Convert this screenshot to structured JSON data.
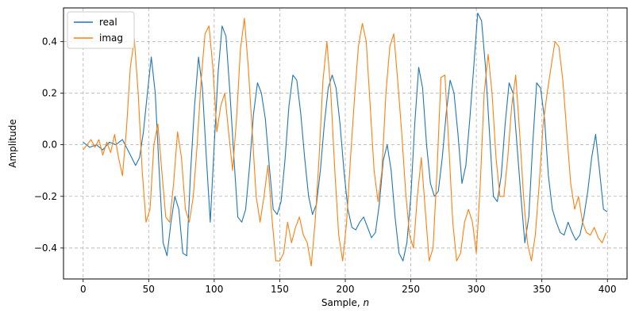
{
  "chart_data": {
    "type": "line",
    "title": "",
    "xlabel": "Sample, ",
    "xlabel_var": "n",
    "ylabel": "Amplitude",
    "xlim": [
      -15,
      415
    ],
    "ylim": [
      -0.52,
      0.53
    ],
    "xticks": [
      0,
      50,
      100,
      150,
      200,
      250,
      300,
      350,
      400
    ],
    "xtick_labels": [
      "0",
      "50",
      "100",
      "150",
      "200",
      "250",
      "300",
      "350",
      "400"
    ],
    "yticks": [
      -0.4,
      -0.2,
      0.0,
      0.2,
      0.4
    ],
    "ytick_labels": [
      "−0.4",
      "−0.2",
      "0.0",
      "0.2",
      "0.4"
    ],
    "grid": true,
    "legend_position": "top-left",
    "series": [
      {
        "name": "real",
        "color": "#1f77b4",
        "x": [
          0,
          5,
          10,
          15,
          20,
          25,
          30,
          35,
          40,
          43,
          46,
          49,
          52,
          55,
          58,
          61,
          64,
          67,
          70,
          73,
          76,
          79,
          82,
          85,
          88,
          91,
          94,
          97,
          100,
          103,
          106,
          109,
          112,
          115,
          118,
          121,
          124,
          127,
          130,
          133,
          136,
          139,
          142,
          145,
          148,
          151,
          154,
          157,
          160,
          163,
          166,
          169,
          172,
          175,
          178,
          181,
          184,
          187,
          190,
          193,
          196,
          199,
          202,
          205,
          208,
          211,
          214,
          217,
          220,
          223,
          226,
          229,
          232,
          235,
          238,
          241,
          244,
          247,
          250,
          253,
          256,
          259,
          262,
          265,
          268,
          271,
          274,
          277,
          280,
          283,
          286,
          289,
          292,
          295,
          298,
          301,
          304,
          307,
          310,
          313,
          316,
          319,
          322,
          325,
          328,
          331,
          334,
          337,
          340,
          343,
          346,
          349,
          352,
          355,
          358,
          361,
          364,
          367,
          370,
          373,
          376,
          379,
          382,
          385,
          388,
          391,
          394,
          397,
          400
        ],
        "y": [
          0.01,
          -0.01,
          0.0,
          -0.02,
          0.01,
          0.0,
          0.02,
          -0.03,
          -0.08,
          -0.05,
          0.05,
          0.2,
          0.34,
          0.2,
          -0.1,
          -0.38,
          -0.43,
          -0.3,
          -0.2,
          -0.25,
          -0.42,
          -0.43,
          -0.1,
          0.15,
          0.34,
          0.22,
          -0.05,
          -0.3,
          0.0,
          0.28,
          0.46,
          0.42,
          0.2,
          -0.05,
          -0.28,
          -0.3,
          -0.25,
          -0.08,
          0.12,
          0.24,
          0.2,
          0.1,
          -0.08,
          -0.25,
          -0.27,
          -0.22,
          -0.06,
          0.15,
          0.27,
          0.25,
          0.12,
          -0.05,
          -0.2,
          -0.27,
          -0.23,
          -0.1,
          0.08,
          0.22,
          0.27,
          0.22,
          0.08,
          -0.1,
          -0.25,
          -0.32,
          -0.33,
          -0.3,
          -0.28,
          -0.32,
          -0.36,
          -0.34,
          -0.23,
          -0.06,
          0.0,
          -0.1,
          -0.28,
          -0.42,
          -0.45,
          -0.38,
          -0.2,
          0.08,
          0.3,
          0.22,
          0.0,
          -0.15,
          -0.2,
          -0.18,
          -0.05,
          0.12,
          0.25,
          0.2,
          0.04,
          -0.15,
          -0.08,
          0.1,
          0.3,
          0.51,
          0.48,
          0.3,
          0.05,
          -0.2,
          -0.22,
          -0.12,
          0.08,
          0.24,
          0.2,
          0.0,
          -0.2,
          -0.38,
          -0.28,
          0.0,
          0.24,
          0.22,
          0.1,
          -0.12,
          -0.25,
          -0.3,
          -0.34,
          -0.35,
          -0.3,
          -0.34,
          -0.37,
          -0.35,
          -0.28,
          -0.18,
          -0.05,
          0.04,
          -0.1,
          -0.25,
          -0.26
        ]
      },
      {
        "name": "imag",
        "color": "#ff7f0e",
        "x": [
          0,
          3,
          6,
          9,
          12,
          15,
          18,
          21,
          24,
          27,
          30,
          33,
          36,
          39,
          42,
          45,
          48,
          51,
          54,
          57,
          60,
          63,
          66,
          69,
          72,
          75,
          78,
          81,
          84,
          87,
          90,
          93,
          96,
          99,
          102,
          105,
          108,
          111,
          114,
          117,
          120,
          123,
          126,
          129,
          132,
          135,
          138,
          141,
          144,
          147,
          150,
          153,
          156,
          159,
          162,
          165,
          168,
          171,
          174,
          177,
          180,
          183,
          186,
          189,
          192,
          195,
          198,
          201,
          204,
          207,
          210,
          213,
          216,
          219,
          222,
          225,
          228,
          231,
          234,
          237,
          240,
          243,
          246,
          249,
          252,
          255,
          258,
          261,
          264,
          267,
          270,
          273,
          276,
          279,
          282,
          285,
          288,
          291,
          294,
          297,
          300,
          303,
          306,
          309,
          312,
          315,
          318,
          321,
          324,
          327,
          330,
          333,
          336,
          339,
          342,
          345,
          348,
          351,
          354,
          357,
          360,
          363,
          366,
          369,
          372,
          375,
          378,
          381,
          384,
          387,
          390,
          393,
          396,
          399
        ],
        "y": [
          -0.02,
          0.0,
          0.02,
          -0.01,
          0.02,
          -0.04,
          0.01,
          -0.03,
          0.04,
          -0.05,
          -0.12,
          0.06,
          0.3,
          0.41,
          0.2,
          -0.1,
          -0.3,
          -0.25,
          0.0,
          0.08,
          -0.1,
          -0.28,
          -0.3,
          -0.15,
          0.05,
          -0.05,
          -0.25,
          -0.3,
          -0.2,
          0.0,
          0.25,
          0.43,
          0.46,
          0.3,
          0.05,
          0.15,
          0.2,
          0.05,
          -0.1,
          0.1,
          0.37,
          0.49,
          0.3,
          0.05,
          -0.2,
          -0.3,
          -0.2,
          -0.08,
          -0.28,
          -0.45,
          -0.45,
          -0.42,
          -0.3,
          -0.38,
          -0.32,
          -0.28,
          -0.35,
          -0.38,
          -0.47,
          -0.3,
          -0.05,
          0.25,
          0.4,
          0.2,
          -0.1,
          -0.35,
          -0.45,
          -0.3,
          -0.05,
          0.18,
          0.38,
          0.47,
          0.4,
          0.15,
          -0.1,
          -0.22,
          -0.1,
          0.2,
          0.38,
          0.43,
          0.25,
          0.05,
          -0.18,
          -0.35,
          -0.4,
          -0.2,
          -0.05,
          -0.25,
          -0.45,
          -0.4,
          -0.1,
          0.26,
          0.27,
          0.0,
          -0.3,
          -0.45,
          -0.42,
          -0.3,
          -0.25,
          -0.3,
          -0.42,
          -0.15,
          0.2,
          0.35,
          0.2,
          -0.05,
          -0.2,
          -0.2,
          -0.05,
          0.15,
          0.27,
          0.05,
          -0.2,
          -0.38,
          -0.45,
          -0.35,
          -0.15,
          0.08,
          0.2,
          0.3,
          0.4,
          0.38,
          0.25,
          0.05,
          -0.15,
          -0.25,
          -0.2,
          -0.3,
          -0.34,
          -0.35,
          -0.32,
          -0.36,
          -0.38,
          -0.34
        ]
      }
    ]
  }
}
